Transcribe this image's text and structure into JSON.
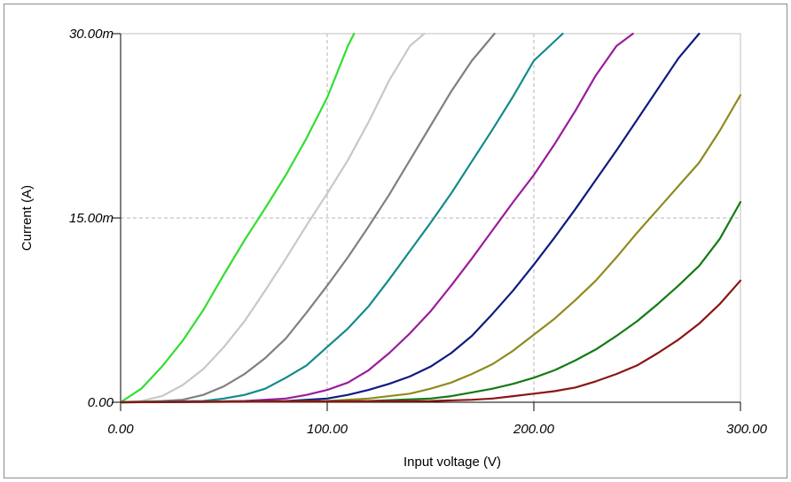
{
  "chart_data": {
    "type": "line",
    "title": "",
    "xlabel": "Input voltage (V)",
    "ylabel": "Current (A)",
    "xlim": [
      0,
      300
    ],
    "ylim": [
      0,
      0.03
    ],
    "x_ticks": [
      0,
      100,
      200,
      300
    ],
    "x_tick_labels": [
      "0.00",
      "100.00",
      "200.00",
      "300.00"
    ],
    "y_ticks": [
      0,
      0.015,
      0.03
    ],
    "y_tick_labels": [
      "0.00",
      "15.00m",
      "30.00m"
    ],
    "grid": true,
    "legend": "none",
    "series": [
      {
        "color": "#33dd33",
        "points": [
          [
            0,
            0
          ],
          [
            10,
            0.0011
          ],
          [
            20,
            0.0029
          ],
          [
            30,
            0.005
          ],
          [
            40,
            0.0075
          ],
          [
            50,
            0.0104
          ],
          [
            60,
            0.0132
          ],
          [
            70,
            0.0158
          ],
          [
            80,
            0.0185
          ],
          [
            90,
            0.0215
          ],
          [
            100,
            0.0248
          ],
          [
            110,
            0.029
          ],
          [
            113,
            0.03
          ]
        ]
      },
      {
        "color": "#c8c8c8",
        "points": [
          [
            0,
            0
          ],
          [
            10,
            0.0001
          ],
          [
            20,
            0.0005
          ],
          [
            30,
            0.0014
          ],
          [
            40,
            0.0027
          ],
          [
            50,
            0.0045
          ],
          [
            60,
            0.0066
          ],
          [
            70,
            0.0091
          ],
          [
            80,
            0.0117
          ],
          [
            90,
            0.0144
          ],
          [
            100,
            0.017
          ],
          [
            110,
            0.0197
          ],
          [
            120,
            0.0228
          ],
          [
            130,
            0.0262
          ],
          [
            140,
            0.029
          ],
          [
            147,
            0.03
          ]
        ]
      },
      {
        "color": "#808080",
        "points": [
          [
            0,
            0
          ],
          [
            20,
            0.0001
          ],
          [
            30,
            0.0002
          ],
          [
            40,
            0.0006
          ],
          [
            50,
            0.0013
          ],
          [
            60,
            0.0023
          ],
          [
            70,
            0.0036
          ],
          [
            80,
            0.0052
          ],
          [
            90,
            0.0073
          ],
          [
            100,
            0.0095
          ],
          [
            110,
            0.0118
          ],
          [
            120,
            0.0143
          ],
          [
            130,
            0.0169
          ],
          [
            140,
            0.0197
          ],
          [
            150,
            0.0225
          ],
          [
            160,
            0.0253
          ],
          [
            170,
            0.0278
          ],
          [
            181,
            0.03
          ]
        ]
      },
      {
        "color": "#138a8a",
        "points": [
          [
            0,
            0
          ],
          [
            40,
            0.0001
          ],
          [
            50,
            0.0003
          ],
          [
            60,
            0.0006
          ],
          [
            70,
            0.0011
          ],
          [
            80,
            0.002
          ],
          [
            90,
            0.003
          ],
          [
            100,
            0.0045
          ],
          [
            110,
            0.006
          ],
          [
            120,
            0.0078
          ],
          [
            130,
            0.01
          ],
          [
            140,
            0.0123
          ],
          [
            150,
            0.0146
          ],
          [
            160,
            0.017
          ],
          [
            170,
            0.0196
          ],
          [
            180,
            0.0222
          ],
          [
            190,
            0.0249
          ],
          [
            200,
            0.0278
          ],
          [
            214,
            0.03
          ]
        ]
      },
      {
        "color": "#9b1c9b",
        "points": [
          [
            0,
            0
          ],
          [
            60,
            0.0001
          ],
          [
            80,
            0.0003
          ],
          [
            90,
            0.0006
          ],
          [
            100,
            0.001
          ],
          [
            110,
            0.0016
          ],
          [
            120,
            0.0026
          ],
          [
            130,
            0.004
          ],
          [
            140,
            0.0056
          ],
          [
            150,
            0.0074
          ],
          [
            160,
            0.0095
          ],
          [
            170,
            0.0117
          ],
          [
            180,
            0.014
          ],
          [
            190,
            0.0163
          ],
          [
            200,
            0.0185
          ],
          [
            210,
            0.021
          ],
          [
            220,
            0.0237
          ],
          [
            230,
            0.0266
          ],
          [
            240,
            0.029
          ],
          [
            248,
            0.03
          ]
        ]
      },
      {
        "color": "#101a80",
        "points": [
          [
            0,
            0
          ],
          [
            80,
            0.0001
          ],
          [
            100,
            0.0003
          ],
          [
            110,
            0.0006
          ],
          [
            120,
            0.001
          ],
          [
            130,
            0.0015
          ],
          [
            140,
            0.0021
          ],
          [
            150,
            0.0029
          ],
          [
            160,
            0.004
          ],
          [
            170,
            0.0054
          ],
          [
            180,
            0.0072
          ],
          [
            190,
            0.0091
          ],
          [
            200,
            0.0112
          ],
          [
            210,
            0.0134
          ],
          [
            220,
            0.0157
          ],
          [
            230,
            0.0181
          ],
          [
            240,
            0.0205
          ],
          [
            250,
            0.023
          ],
          [
            260,
            0.0255
          ],
          [
            270,
            0.028
          ],
          [
            280,
            0.03
          ]
        ]
      },
      {
        "color": "#8f8a20",
        "points": [
          [
            0,
            0
          ],
          [
            100,
            0.0001
          ],
          [
            120,
            0.0003
          ],
          [
            140,
            0.0007
          ],
          [
            150,
            0.0011
          ],
          [
            160,
            0.0016
          ],
          [
            170,
            0.0023
          ],
          [
            180,
            0.0031
          ],
          [
            190,
            0.0042
          ],
          [
            200,
            0.0055
          ],
          [
            210,
            0.0068
          ],
          [
            220,
            0.0083
          ],
          [
            230,
            0.0099
          ],
          [
            240,
            0.0118
          ],
          [
            250,
            0.0138
          ],
          [
            260,
            0.0157
          ],
          [
            270,
            0.0176
          ],
          [
            280,
            0.0195
          ],
          [
            290,
            0.0221
          ],
          [
            300,
            0.025
          ]
        ]
      },
      {
        "color": "#147a14",
        "points": [
          [
            0,
            0
          ],
          [
            120,
            0.0001
          ],
          [
            150,
            0.0003
          ],
          [
            160,
            0.0005
          ],
          [
            170,
            0.0008
          ],
          [
            180,
            0.0011
          ],
          [
            190,
            0.0015
          ],
          [
            200,
            0.002
          ],
          [
            210,
            0.0026
          ],
          [
            220,
            0.0034
          ],
          [
            230,
            0.0043
          ],
          [
            240,
            0.0054
          ],
          [
            250,
            0.0066
          ],
          [
            260,
            0.008
          ],
          [
            270,
            0.0095
          ],
          [
            280,
            0.0111
          ],
          [
            290,
            0.0133
          ],
          [
            300,
            0.0163
          ]
        ]
      },
      {
        "color": "#8a1515",
        "points": [
          [
            0,
            0
          ],
          [
            150,
            0.0001
          ],
          [
            170,
            0.0002
          ],
          [
            180,
            0.0003
          ],
          [
            190,
            0.0005
          ],
          [
            200,
            0.0007
          ],
          [
            210,
            0.0009
          ],
          [
            220,
            0.0012
          ],
          [
            230,
            0.0017
          ],
          [
            240,
            0.0023
          ],
          [
            250,
            0.003
          ],
          [
            260,
            0.004
          ],
          [
            270,
            0.0051
          ],
          [
            280,
            0.0064
          ],
          [
            290,
            0.008
          ],
          [
            300,
            0.0099
          ]
        ]
      }
    ]
  }
}
